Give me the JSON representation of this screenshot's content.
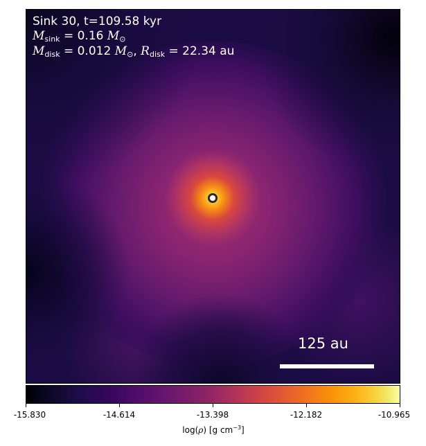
{
  "annotation": {
    "title": "Sink 30, t=109.58 kyr",
    "m_sink_symbol": "M",
    "m_sink_subscript": "sink",
    "m_sink_value": "= 0.16",
    "m_sink_unit_symbol": "M",
    "m_sink_unit_subscript": "⊙",
    "m_disk_symbol": "M",
    "m_disk_subscript": "disk",
    "m_disk_value": "= 0.012",
    "m_disk_unit_symbol": "M",
    "m_disk_unit_subscript": "⊙",
    "separator": ", ",
    "r_disk_symbol": "R",
    "r_disk_subscript": "disk",
    "r_disk_value": "= 22.34 au"
  },
  "scalebar": {
    "label": "125 au"
  },
  "colorbar": {
    "colormap": "inferno",
    "ticks": [
      "-15.830",
      "-14.614",
      "-13.398",
      "-12.182",
      "-10.965"
    ],
    "tick_values": [
      -15.83,
      -14.614,
      -13.398,
      -12.182,
      -10.965
    ],
    "vmin": -15.83,
    "vmax": -10.965,
    "label_prefix": "log(",
    "label_symbol": "ρ",
    "label_suffix": ") [g cm",
    "label_exponent": "−3",
    "label_close": "]"
  },
  "colors": {
    "background_field": "#1c0c45",
    "envelope": "#7a1d6d",
    "core": "#f7a822",
    "sink_marker": "#ffffff"
  }
}
